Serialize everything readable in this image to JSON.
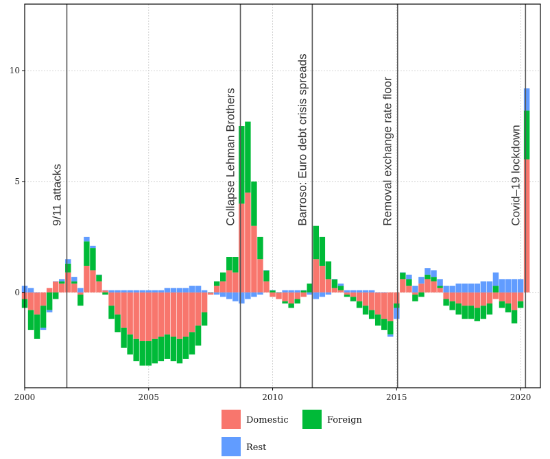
{
  "chart_data": {
    "type": "bar",
    "stacked": true,
    "title": "",
    "xlabel": "",
    "ylabel": "",
    "xlim": [
      2000,
      2020.8
    ],
    "ylim": [
      -4.3,
      13
    ],
    "x_ticks": [
      {
        "value": 2000,
        "label": "2000"
      },
      {
        "value": 2005,
        "label": "2005"
      },
      {
        "value": 2010,
        "label": "2010"
      },
      {
        "value": 2015,
        "label": "2015"
      },
      {
        "value": 2020,
        "label": "2020"
      }
    ],
    "y_ticks": [
      {
        "value": 0,
        "label": "0"
      },
      {
        "value": 5,
        "label": "5"
      },
      {
        "value": 10,
        "label": "10"
      }
    ],
    "grid": true,
    "legend_position": "bottom",
    "colors": {
      "Domestic": "#f8766d",
      "Foreign": "#00ba38",
      "Rest": "#619cff"
    },
    "events": [
      {
        "x": 2001.7,
        "label": "9/11 attacks"
      },
      {
        "x": 2008.7,
        "label": "Collapse Lehman Brothers"
      },
      {
        "x": 2011.6,
        "label": "Barroso: Euro debt crisis spreads"
      },
      {
        "x": 2015.04,
        "label": "Removal exchange rate floor"
      },
      {
        "x": 2020.2,
        "label": "Covid–19 lockdown"
      }
    ],
    "x": [
      2000.0,
      2000.25,
      2000.5,
      2000.75,
      2001.0,
      2001.25,
      2001.5,
      2001.75,
      2002.0,
      2002.25,
      2002.5,
      2002.75,
      2003.0,
      2003.25,
      2003.5,
      2003.75,
      2004.0,
      2004.25,
      2004.5,
      2004.75,
      2005.0,
      2005.25,
      2005.5,
      2005.75,
      2006.0,
      2006.25,
      2006.5,
      2006.75,
      2007.0,
      2007.25,
      2007.5,
      2007.75,
      2008.0,
      2008.25,
      2008.5,
      2008.75,
      2009.0,
      2009.25,
      2009.5,
      2009.75,
      2010.0,
      2010.25,
      2010.5,
      2010.75,
      2011.0,
      2011.25,
      2011.5,
      2011.75,
      2012.0,
      2012.25,
      2012.5,
      2012.75,
      2013.0,
      2013.25,
      2013.5,
      2013.75,
      2014.0,
      2014.25,
      2014.5,
      2014.75,
      2015.0,
      2015.25,
      2015.5,
      2015.75,
      2016.0,
      2016.25,
      2016.5,
      2016.75,
      2017.0,
      2017.25,
      2017.5,
      2017.75,
      2018.0,
      2018.25,
      2018.5,
      2018.75,
      2019.0,
      2019.25,
      2019.5,
      2019.75,
      2020.0,
      2020.25
    ],
    "series": [
      {
        "name": "Domestic",
        "values": [
          -0.3,
          -0.8,
          -1.0,
          -0.6,
          0.2,
          0.5,
          0.4,
          0.9,
          0.4,
          -0.1,
          1.2,
          1.0,
          0.5,
          0.1,
          -0.6,
          -1.0,
          -1.6,
          -1.9,
          -2.1,
          -2.2,
          -2.2,
          -2.1,
          -2.0,
          -1.9,
          -2.0,
          -2.1,
          -2.0,
          -1.8,
          -1.5,
          -0.9,
          -0.1,
          0.3,
          0.5,
          1.0,
          0.9,
          4.0,
          4.5,
          3.0,
          1.5,
          0.5,
          -0.2,
          -0.3,
          -0.4,
          -0.5,
          -0.3,
          -0.2,
          0.0,
          1.5,
          1.2,
          0.6,
          0.2,
          0.1,
          -0.1,
          -0.2,
          -0.4,
          -0.6,
          -0.8,
          -1.0,
          -1.2,
          -1.3,
          -0.5,
          0.6,
          0.3,
          -0.1,
          0.4,
          0.6,
          0.5,
          0.2,
          -0.3,
          -0.4,
          -0.5,
          -0.6,
          -0.6,
          -0.7,
          -0.6,
          -0.5,
          -0.3,
          -0.4,
          -0.5,
          -0.8,
          -0.4,
          6.0
        ]
      },
      {
        "name": "Foreign",
        "values": [
          -0.4,
          -0.9,
          -1.1,
          -1.0,
          -0.8,
          -0.3,
          0.1,
          0.4,
          0.1,
          -0.5,
          1.1,
          1.0,
          0.3,
          -0.1,
          -0.6,
          -0.8,
          -0.9,
          -0.9,
          -1.0,
          -1.1,
          -1.1,
          -1.1,
          -1.1,
          -1.1,
          -1.1,
          -1.1,
          -1.0,
          -1.0,
          -0.9,
          -0.6,
          0.0,
          0.2,
          0.4,
          0.6,
          0.7,
          3.5,
          3.2,
          2.0,
          1.0,
          0.5,
          0.1,
          0.0,
          -0.1,
          -0.2,
          -0.2,
          0.1,
          0.4,
          1.5,
          1.3,
          0.8,
          0.4,
          0.2,
          -0.1,
          -0.2,
          -0.3,
          -0.4,
          -0.4,
          -0.5,
          -0.5,
          -0.6,
          -0.2,
          0.3,
          0.3,
          -0.3,
          -0.2,
          0.2,
          0.2,
          0.1,
          -0.3,
          -0.4,
          -0.5,
          -0.6,
          -0.6,
          -0.6,
          -0.6,
          -0.5,
          0.3,
          -0.3,
          -0.4,
          -0.6,
          -0.3,
          2.2
        ]
      },
      {
        "name": "Rest",
        "values": [
          0.3,
          0.2,
          0.0,
          -0.1,
          -0.1,
          0.0,
          0.1,
          0.2,
          0.2,
          0.2,
          0.2,
          0.1,
          0.0,
          0.0,
          0.1,
          0.1,
          0.1,
          0.1,
          0.1,
          0.1,
          0.1,
          0.1,
          0.1,
          0.2,
          0.2,
          0.2,
          0.2,
          0.3,
          0.3,
          0.1,
          0.0,
          -0.1,
          -0.2,
          -0.3,
          -0.4,
          -0.5,
          -0.3,
          -0.2,
          -0.1,
          0.0,
          0.0,
          0.0,
          0.1,
          0.1,
          0.1,
          0.0,
          -0.1,
          -0.3,
          -0.2,
          -0.1,
          0.0,
          0.1,
          0.1,
          0.1,
          0.1,
          0.1,
          0.1,
          0.0,
          0.0,
          -0.1,
          -0.5,
          0.0,
          0.2,
          0.3,
          0.3,
          0.3,
          0.3,
          0.3,
          0.3,
          0.3,
          0.4,
          0.4,
          0.4,
          0.4,
          0.5,
          0.5,
          0.6,
          0.6,
          0.6,
          0.6,
          0.6,
          1.0
        ]
      }
    ]
  }
}
